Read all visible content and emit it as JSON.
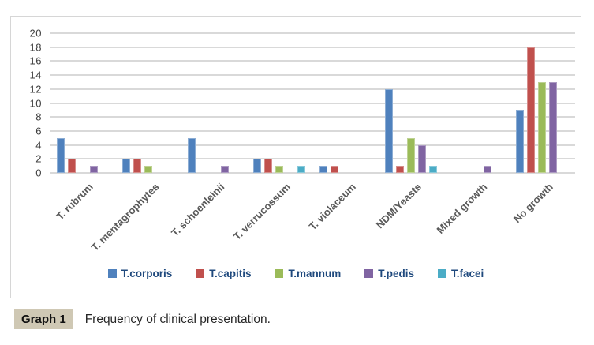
{
  "chart_data": {
    "type": "bar",
    "title": "",
    "categories": [
      "T. rubrum",
      "T. mentagrophytes",
      "T. schoenleinii",
      "T. verrucossum",
      "T. violaceum",
      "NDM/Yeasts",
      "Mixed growth",
      "No growth"
    ],
    "series": [
      {
        "name": "T.corporis",
        "color": "#4F81BD",
        "values": [
          5,
          2,
          5,
          2,
          1,
          12,
          0,
          9
        ]
      },
      {
        "name": "T.capitis",
        "color": "#C0504D",
        "values": [
          2,
          2,
          0,
          2,
          1,
          1,
          0,
          18
        ]
      },
      {
        "name": "T.mannum",
        "color": "#9BBB59",
        "values": [
          0,
          1,
          0,
          1,
          0,
          5,
          0,
          13
        ]
      },
      {
        "name": "T.pedis",
        "color": "#8064A2",
        "values": [
          1,
          0,
          1,
          0,
          0,
          4,
          1,
          13
        ]
      },
      {
        "name": "T.facei",
        "color": "#4BACC6",
        "values": [
          0,
          0,
          0,
          1,
          0,
          1,
          0,
          0
        ]
      }
    ],
    "ylim": [
      0,
      20
    ],
    "ytick_step": 2,
    "grid": true,
    "legend_position": "bottom",
    "gridline_color": "#d9d9d9",
    "axis_label_color": "#404040",
    "category_label_color": "#595959",
    "legend_text_color": "#1F497D"
  },
  "caption": {
    "badge": "Graph 1",
    "text": "Frequency of clinical presentation."
  }
}
